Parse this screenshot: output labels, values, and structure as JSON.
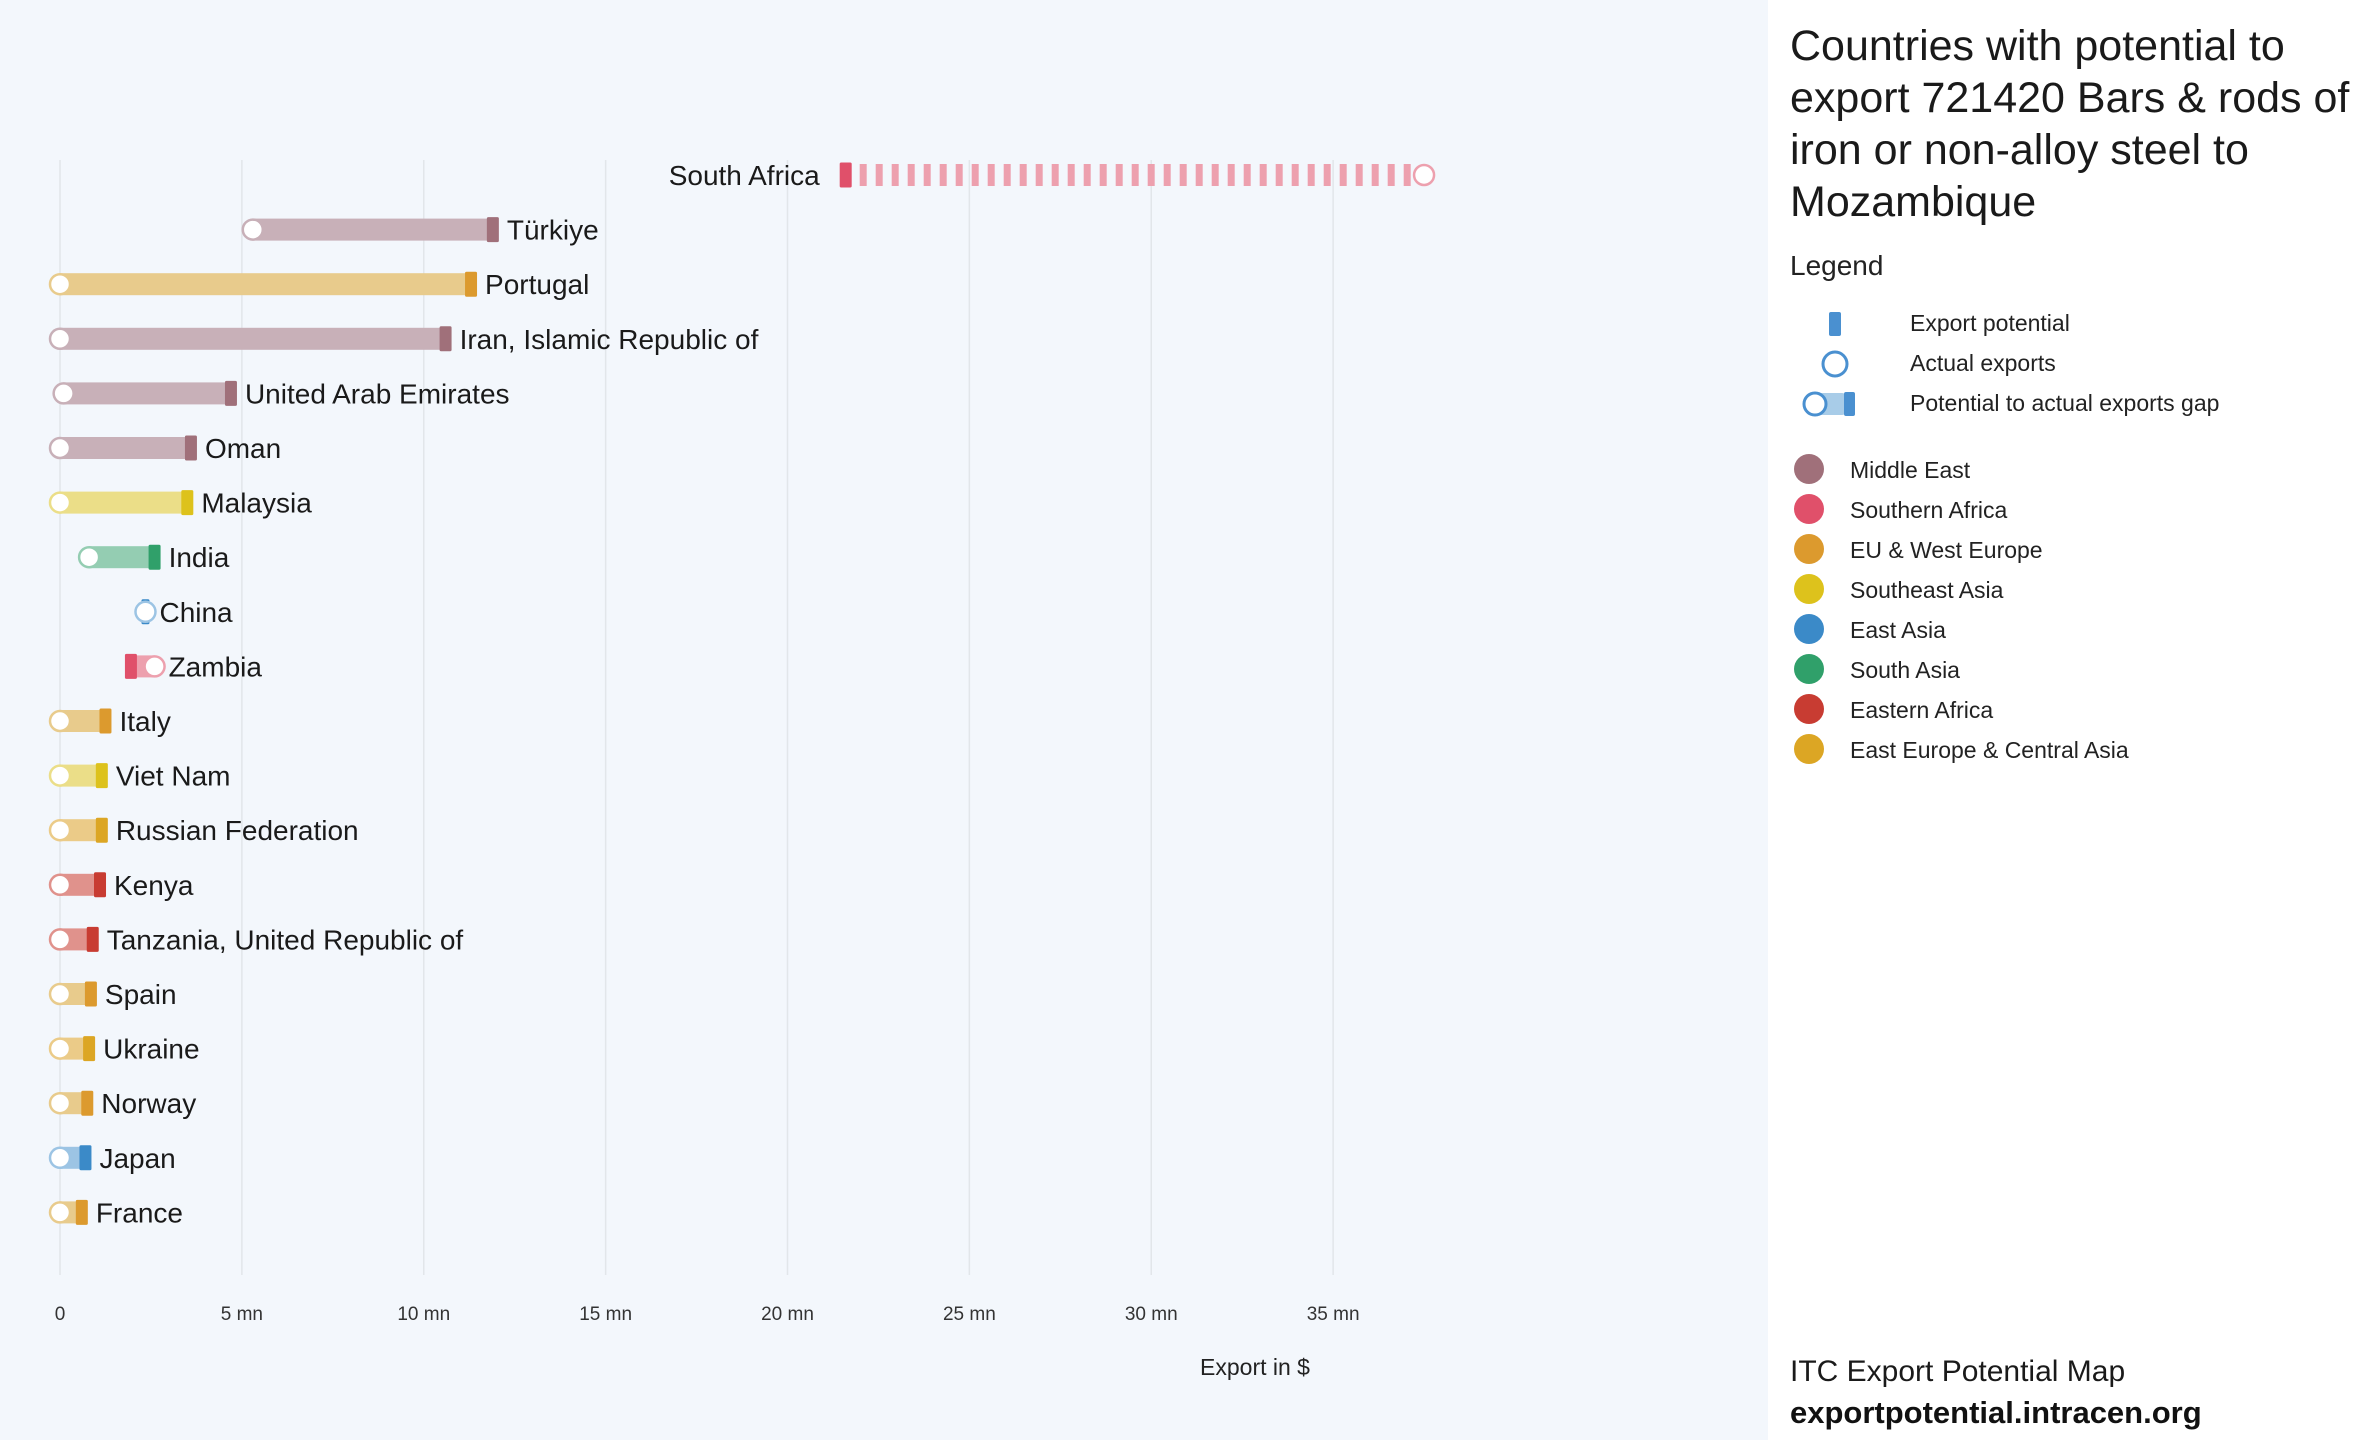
{
  "chart_data": {
    "type": "bar",
    "xlabel": "Export in $",
    "x_ticks": [
      {
        "value": 0,
        "label": "0"
      },
      {
        "value": 5,
        "label": "5 mn"
      },
      {
        "value": 10,
        "label": "10 mn"
      },
      {
        "value": 15,
        "label": "15 mn"
      },
      {
        "value": 20,
        "label": "20 mn"
      },
      {
        "value": 25,
        "label": "25 mn"
      },
      {
        "value": 30,
        "label": "30 mn"
      },
      {
        "value": 35,
        "label": "35 mn"
      }
    ],
    "xlim": [
      0,
      40
    ],
    "value_unit": "million USD",
    "rows": [
      {
        "country": "South Africa",
        "region": "Southern Africa",
        "potential": 21.6,
        "actual": 37.5
      },
      {
        "country": "Türkiye",
        "region": "Middle East",
        "potential": 11.9,
        "actual": 5.3
      },
      {
        "country": "Portugal",
        "region": "EU & West Europe",
        "potential": 11.3,
        "actual": 0.0
      },
      {
        "country": "Iran, Islamic Republic of",
        "region": "Middle East",
        "potential": 10.6,
        "actual": 0.0
      },
      {
        "country": "United Arab Emirates",
        "region": "Middle East",
        "potential": 4.7,
        "actual": 0.1
      },
      {
        "country": "Oman",
        "region": "Middle East",
        "potential": 3.6,
        "actual": 0.0
      },
      {
        "country": "Malaysia",
        "region": "Southeast Asia",
        "potential": 3.5,
        "actual": 0.0
      },
      {
        "country": "India",
        "region": "South Asia",
        "potential": 2.6,
        "actual": 0.8
      },
      {
        "country": "China",
        "region": "East Asia",
        "potential": 2.35,
        "actual": 2.35
      },
      {
        "country": "Zambia",
        "region": "Southern Africa",
        "potential": 1.95,
        "actual": 2.6
      },
      {
        "country": "Italy",
        "region": "EU & West Europe",
        "potential": 1.25,
        "actual": 0.0
      },
      {
        "country": "Viet Nam",
        "region": "Southeast Asia",
        "potential": 1.15,
        "actual": 0.0
      },
      {
        "country": "Russian Federation",
        "region": "East Europe & Central Asia",
        "potential": 1.15,
        "actual": 0.0
      },
      {
        "country": "Kenya",
        "region": "Eastern Africa",
        "potential": 1.1,
        "actual": 0.0
      },
      {
        "country": "Tanzania, United Republic of",
        "region": "Eastern Africa",
        "potential": 0.9,
        "actual": 0.0
      },
      {
        "country": "Spain",
        "region": "EU & West Europe",
        "potential": 0.85,
        "actual": 0.0
      },
      {
        "country": "Ukraine",
        "region": "East Europe & Central Asia",
        "potential": 0.8,
        "actual": 0.0
      },
      {
        "country": "Norway",
        "region": "EU & West Europe",
        "potential": 0.75,
        "actual": 0.0
      },
      {
        "country": "Japan",
        "region": "East Asia",
        "potential": 0.7,
        "actual": 0.0
      },
      {
        "country": "France",
        "region": "EU & West Europe",
        "potential": 0.6,
        "actual": 0.0
      }
    ]
  },
  "regions": [
    {
      "name": "Middle East",
      "color": "#a0707a",
      "light": "#c8b0b8"
    },
    {
      "name": "Southern Africa",
      "color": "#e0506a",
      "light": "#eda0ae"
    },
    {
      "name": "EU & West Europe",
      "color": "#dc9a2e",
      "light": "#e8cb8c"
    },
    {
      "name": "Southeast Asia",
      "color": "#ddc21c",
      "light": "#ebde88"
    },
    {
      "name": "East Asia",
      "color": "#3b8ac8",
      "light": "#9cc4e4"
    },
    {
      "name": "South Asia",
      "color": "#30a06a",
      "light": "#94cdb2"
    },
    {
      "name": "Eastern Africa",
      "color": "#c83c32",
      "light": "#e0928c"
    },
    {
      "name": "East Europe & Central Asia",
      "color": "#dca624",
      "light": "#ebcb88"
    }
  ],
  "panel": {
    "title": "Countries with potential to export 721420 Bars & rods of iron or non-alloy steel to Mozambique",
    "legend_heading": "Legend",
    "legend_items": [
      "Export potential",
      "Actual exports",
      "Potential to actual exports gap"
    ],
    "legend_color": "#4a90d0",
    "legend_light": "#a8cce8",
    "footer_line1": "ITC Export Potential Map",
    "footer_line2": "exportpotential.intracen.org"
  }
}
